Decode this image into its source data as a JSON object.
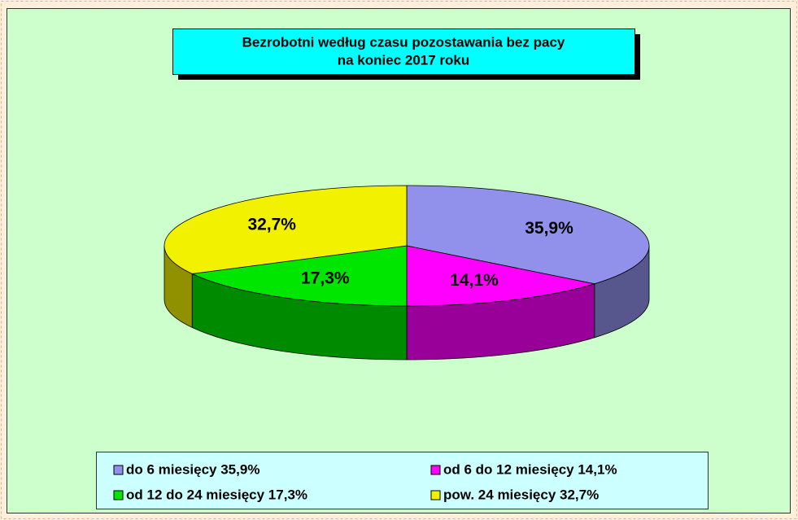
{
  "chart_data": {
    "type": "pie",
    "title": [
      "Bezrobotni  według czasu pozostawania bez pacy",
      "na koniec 2017 roku"
    ],
    "categories": [
      "do 6 miesięcy 35,9%",
      "od 6 do 12 miesięcy 14,1%",
      "od 12 do 24 miesięcy 17,3%",
      "pow. 24 miesięcy 32,7%"
    ],
    "values": [
      35.9,
      14.1,
      17.3,
      32.7
    ],
    "value_labels": [
      "35,9%",
      "14,1%",
      "17,3%",
      "32,7%"
    ],
    "colors": [
      "#9191ec",
      "#ff00ff",
      "#00e600",
      "#f2f200"
    ],
    "legend": "bottom"
  }
}
